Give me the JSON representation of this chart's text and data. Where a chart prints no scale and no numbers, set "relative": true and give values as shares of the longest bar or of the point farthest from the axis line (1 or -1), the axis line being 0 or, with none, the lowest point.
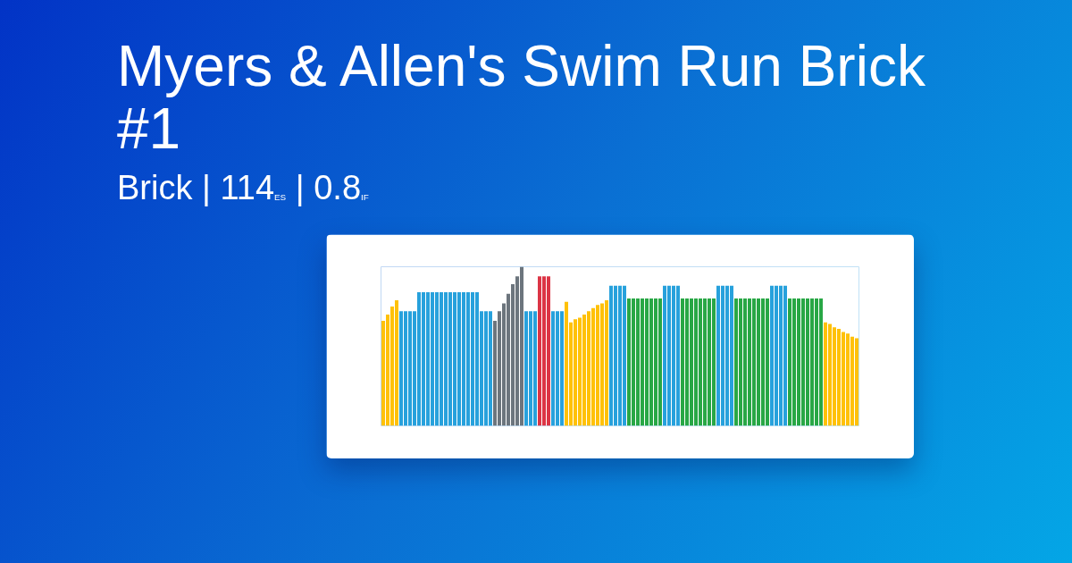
{
  "chart_data": {
    "type": "bar",
    "title": "Myers & Allen's Swim Run Brick #1",
    "subtitle": "Brick | 114$_{ES}$ | 0.8$_{IF}$",
    "relative": true,
    "categories": [
      null,
      null,
      null,
      null,
      null,
      null,
      null,
      null,
      null,
      null,
      null,
      null,
      null,
      null,
      null,
      null,
      null,
      null,
      null,
      null,
      null,
      null,
      null,
      null,
      null,
      null,
      null,
      null,
      null,
      null,
      null,
      null,
      null,
      null,
      null,
      null,
      null,
      null,
      null,
      null,
      null,
      null,
      null,
      null,
      null,
      null,
      null,
      null,
      null,
      null,
      null,
      null,
      null,
      null,
      null,
      null,
      null,
      null,
      null,
      null,
      null,
      null,
      null,
      null,
      null,
      null,
      null,
      null,
      null,
      null,
      null,
      null,
      null,
      null,
      null,
      null,
      null,
      null,
      null,
      null,
      null,
      null,
      null,
      null,
      null,
      null,
      null,
      null,
      null,
      null,
      null,
      null,
      null,
      null,
      null,
      null,
      null,
      null,
      null,
      null,
      null,
      null,
      null,
      null,
      null,
      null,
      null
    ],
    "values": [
      0.66,
      0.7,
      0.75,
      0.79,
      0.72,
      0.72,
      0.72,
      0.72,
      0.84,
      0.84,
      0.84,
      0.84,
      0.84,
      0.84,
      0.84,
      0.84,
      0.84,
      0.84,
      0.84,
      0.84,
      0.84,
      0.84,
      0.72,
      0.72,
      0.72,
      0.66,
      0.72,
      0.77,
      0.83,
      0.89,
      0.94,
      1,
      0.72,
      0.72,
      0.72,
      0.94,
      0.94,
      0.94,
      0.72,
      0.72,
      0.72,
      0.78,
      0.65,
      0.67,
      0.68,
      0.7,
      0.72,
      0.74,
      0.76,
      0.77,
      0.79,
      0.88,
      0.88,
      0.88,
      0.88,
      0.8,
      0.8,
      0.8,
      0.8,
      0.8,
      0.8,
      0.8,
      0.8,
      0.88,
      0.88,
      0.88,
      0.88,
      0.8,
      0.8,
      0.8,
      0.8,
      0.8,
      0.8,
      0.8,
      0.8,
      0.88,
      0.88,
      0.88,
      0.88,
      0.8,
      0.8,
      0.8,
      0.8,
      0.8,
      0.8,
      0.8,
      0.8,
      0.88,
      0.88,
      0.88,
      0.88,
      0.8,
      0.8,
      0.8,
      0.8,
      0.8,
      0.8,
      0.8,
      0.8,
      0.65,
      0.64,
      0.62,
      0.61,
      0.59,
      0.58,
      0.56,
      0.55
    ],
    "colors": [
      "#ffc107",
      "#ffc107",
      "#ffc107",
      "#ffc107",
      "#27a1dc",
      "#27a1dc",
      "#27a1dc",
      "#27a1dc",
      "#27a1dc",
      "#27a1dc",
      "#27a1dc",
      "#27a1dc",
      "#27a1dc",
      "#27a1dc",
      "#27a1dc",
      "#27a1dc",
      "#27a1dc",
      "#27a1dc",
      "#27a1dc",
      "#27a1dc",
      "#27a1dc",
      "#27a1dc",
      "#27a1dc",
      "#27a1dc",
      "#27a1dc",
      "#6c757d",
      "#6c757d",
      "#6c757d",
      "#6c757d",
      "#6c757d",
      "#6c757d",
      "#6c757d",
      "#27a1dc",
      "#27a1dc",
      "#27a1dc",
      "#dc3545",
      "#dc3545",
      "#dc3545",
      "#27a1dc",
      "#27a1dc",
      "#27a1dc",
      "#ffc107",
      "#ffc107",
      "#ffc107",
      "#ffc107",
      "#ffc107",
      "#ffc107",
      "#ffc107",
      "#ffc107",
      "#ffc107",
      "#ffc107",
      "#27a1dc",
      "#27a1dc",
      "#27a1dc",
      "#27a1dc",
      "#28a745",
      "#28a745",
      "#28a745",
      "#28a745",
      "#28a745",
      "#28a745",
      "#28a745",
      "#28a745",
      "#27a1dc",
      "#27a1dc",
      "#27a1dc",
      "#27a1dc",
      "#28a745",
      "#28a745",
      "#28a745",
      "#28a745",
      "#28a745",
      "#28a745",
      "#28a745",
      "#28a745",
      "#27a1dc",
      "#27a1dc",
      "#27a1dc",
      "#27a1dc",
      "#28a745",
      "#28a745",
      "#28a745",
      "#28a745",
      "#28a745",
      "#28a745",
      "#28a745",
      "#28a745",
      "#27a1dc",
      "#27a1dc",
      "#27a1dc",
      "#27a1dc",
      "#28a745",
      "#28a745",
      "#28a745",
      "#28a745",
      "#28a745",
      "#28a745",
      "#28a745",
      "#28a745",
      "#ffc107",
      "#ffc107",
      "#ffc107",
      "#ffc107",
      "#ffc107",
      "#ffc107",
      "#ffc107",
      "#ffc107"
    ]
  }
}
